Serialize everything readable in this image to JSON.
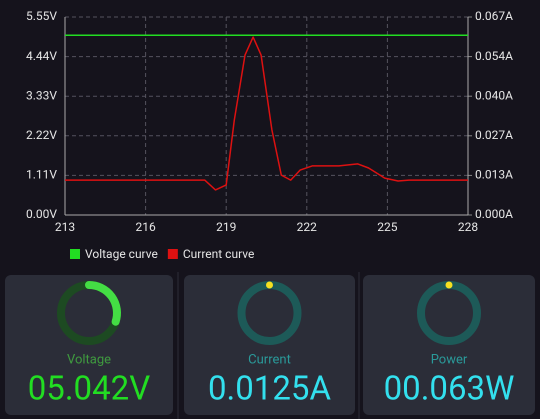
{
  "chart_data": {
    "type": "line",
    "xlim": [
      213,
      228
    ],
    "xticks": [
      213,
      216,
      219,
      222,
      225,
      228
    ],
    "ylim": [
      0,
      5.55
    ],
    "yticks": [
      {
        "value": 0,
        "label": "0.00V"
      },
      {
        "value": 1.11,
        "label": "1.11V"
      },
      {
        "value": 2.22,
        "label": "2.22V"
      },
      {
        "value": 3.33,
        "label": "3.33V"
      },
      {
        "value": 4.44,
        "label": "4.44V"
      },
      {
        "value": 5.55,
        "label": "5.55V"
      }
    ],
    "y2lim": [
      0,
      0.067
    ],
    "y2ticks": [
      {
        "value": 0,
        "label": "0.000A"
      },
      {
        "value": 0.0134,
        "label": "0.013A"
      },
      {
        "value": 0.0268,
        "label": "0.027A"
      },
      {
        "value": 0.0402,
        "label": "0.040A"
      },
      {
        "value": 0.0536,
        "label": "0.054A"
      },
      {
        "value": 0.067,
        "label": "0.067A"
      }
    ],
    "grid": true,
    "series": [
      {
        "name": "Voltage curve",
        "color": "#22dd22",
        "x": [
          213,
          228
        ],
        "values": [
          5.04,
          5.04
        ]
      },
      {
        "name": "Current curve",
        "color": "#dd1111",
        "axis": "y2",
        "x": [
          213,
          218.2,
          218.6,
          219.0,
          219.3,
          219.7,
          220.0,
          220.3,
          220.7,
          221.05,
          221.4,
          221.75,
          222.2,
          223.2,
          223.9,
          224.3,
          224.9,
          225.4,
          225.8,
          228
        ],
        "values": [
          0.0118,
          0.0118,
          0.0085,
          0.0102,
          0.0321,
          0.0541,
          0.0602,
          0.0541,
          0.0288,
          0.0135,
          0.0118,
          0.0152,
          0.0166,
          0.0166,
          0.0173,
          0.0159,
          0.0125,
          0.0115,
          0.0118,
          0.0118
        ]
      }
    ]
  },
  "panels": [
    {
      "label": "Voltage",
      "value": "05.042V",
      "gauge": 0.3,
      "label_color": "#3f9a3f",
      "value_color": "#22dd22",
      "ring_color": "#1d4a22",
      "arc_color": "#44dd44"
    },
    {
      "label": "Current",
      "value": "0.0125A",
      "gauge": 0,
      "label_color": "#2a9a9a",
      "value_color": "#33e0ee",
      "ring_color": "#1d5a58",
      "arc_color": "#f5e020"
    },
    {
      "label": "Power",
      "value": "00.063W",
      "gauge": 0,
      "label_color": "#2a9a9a",
      "value_color": "#33e0ee",
      "ring_color": "#1d5a58",
      "arc_color": "#f5e020"
    }
  ]
}
